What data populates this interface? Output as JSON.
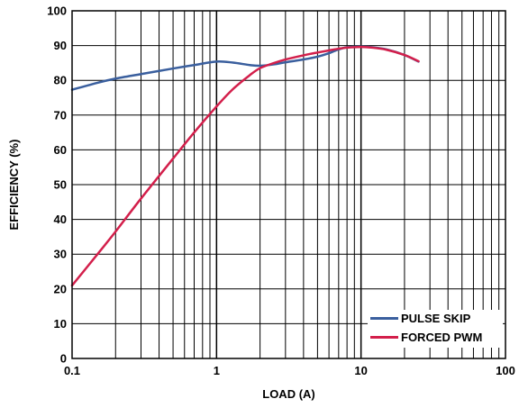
{
  "chart_data": {
    "type": "line",
    "x_scale": "log",
    "xlim": [
      0.1,
      100
    ],
    "ylim": [
      0,
      100
    ],
    "grid": true,
    "legend_position": "bottom-right",
    "xlabel": "LOAD (A)",
    "ylabel": "EFFICIENCY (%)",
    "x_ticks": [
      {
        "value": 0.1,
        "label": "0.1"
      },
      {
        "value": 1,
        "label": "1"
      },
      {
        "value": 10,
        "label": "10"
      },
      {
        "value": 100,
        "label": "100"
      }
    ],
    "y_ticks": [
      {
        "value": 0,
        "label": "0"
      },
      {
        "value": 10,
        "label": "10"
      },
      {
        "value": 20,
        "label": "20"
      },
      {
        "value": 30,
        "label": "30"
      },
      {
        "value": 40,
        "label": "40"
      },
      {
        "value": 50,
        "label": "50"
      },
      {
        "value": 60,
        "label": "60"
      },
      {
        "value": 70,
        "label": "70"
      },
      {
        "value": 80,
        "label": "80"
      },
      {
        "value": 90,
        "label": "90"
      },
      {
        "value": 100,
        "label": "100"
      }
    ],
    "series": [
      {
        "name": "PULSE SKIP",
        "color": "#3a5f9e",
        "x": [
          0.1,
          0.15,
          0.2,
          0.3,
          0.5,
          0.7,
          1.0,
          1.3,
          1.7,
          2.0,
          2.5,
          3.0,
          4.0,
          5.0,
          6.0,
          7.0,
          8.0,
          10.0,
          12.0,
          15.0,
          20.0,
          25.0
        ],
        "y": [
          77.3,
          79.3,
          80.5,
          81.8,
          83.4,
          84.4,
          85.4,
          85.1,
          84.4,
          84.2,
          84.6,
          85.2,
          86.0,
          86.8,
          87.8,
          88.9,
          89.5,
          89.7,
          89.5,
          88.9,
          87.3,
          85.4
        ]
      },
      {
        "name": "FORCED PWM",
        "color": "#d31f4b",
        "x": [
          0.1,
          0.15,
          0.2,
          0.3,
          0.5,
          0.7,
          1.0,
          1.3,
          1.7,
          2.0,
          2.5,
          3.0,
          4.0,
          5.0,
          6.0,
          7.0,
          8.0,
          10.0,
          12.0,
          15.0,
          20.0,
          25.0
        ],
        "y": [
          21.0,
          30.0,
          36.5,
          46.0,
          57.5,
          65.0,
          72.5,
          77.5,
          81.5,
          83.5,
          85.0,
          86.0,
          87.2,
          88.0,
          88.6,
          89.1,
          89.4,
          89.6,
          89.4,
          88.8,
          87.3,
          85.5
        ]
      }
    ]
  }
}
